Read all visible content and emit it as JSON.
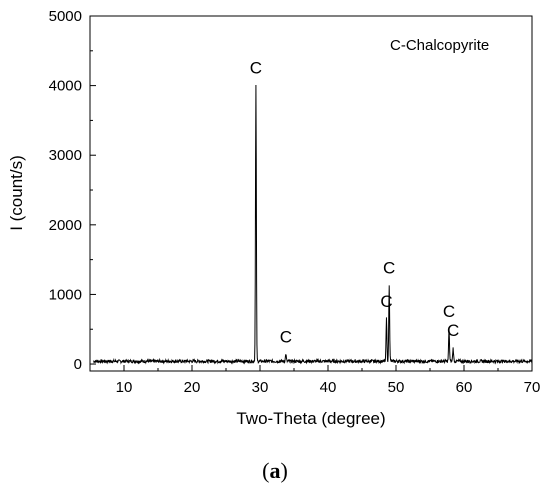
{
  "chart_data": {
    "type": "line",
    "xlabel": "Two-Theta (degree)",
    "ylabel": "I (count/s)",
    "xlim": [
      5,
      70
    ],
    "ylim": [
      -100,
      5000
    ],
    "xticks": [
      10,
      20,
      30,
      40,
      50,
      60,
      70
    ],
    "yticks": [
      0,
      1000,
      2000,
      3000,
      4000,
      5000
    ],
    "grid": false,
    "annotation": "C-Chalcopyrite",
    "series": [
      {
        "baseline": 40,
        "peaks": [
          {
            "x": 29.4,
            "y": 4000,
            "label": "C"
          },
          {
            "x": 33.8,
            "y": 140,
            "label": "C"
          },
          {
            "x": 48.6,
            "y": 650,
            "label": "C"
          },
          {
            "x": 49.0,
            "y": 1130,
            "label": "C"
          },
          {
            "x": 57.8,
            "y": 500,
            "label": "C"
          },
          {
            "x": 58.4,
            "y": 230,
            "label": "C"
          }
        ]
      }
    ]
  },
  "caption": {
    "open": "(",
    "letter": "a",
    "close": ")"
  }
}
